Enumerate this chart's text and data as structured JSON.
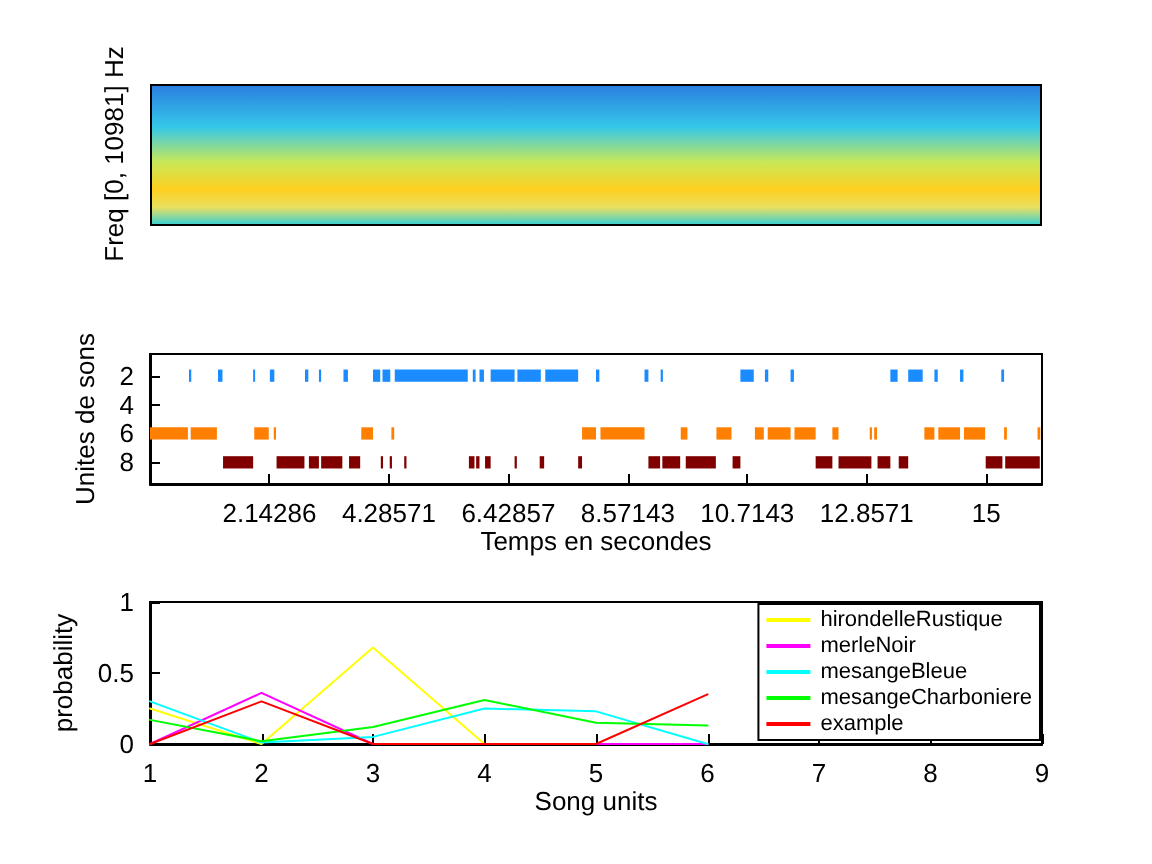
{
  "chart_data": [
    {
      "type": "other",
      "ylabel": "Freq [0, 10981] Hz"
    },
    {
      "type": "bar",
      "orientation": "horizontal",
      "xlabel": "Temps en secondes",
      "ylabel": "Unites de sons",
      "categories": [
        null,
        "2",
        null,
        "4",
        null,
        "6",
        null,
        "8",
        null
      ],
      "xlim": [
        0,
        16
      ],
      "xticks": [
        2.14286,
        4.28571,
        6.42857,
        8.57143,
        10.7143,
        12.8571,
        15
      ],
      "series": [
        {
          "values": [
            null,
            0.04,
            null,
            null,
            null,
            0.68,
            null,
            0.54,
            null
          ],
          "base": [
            null,
            0.7,
            null,
            null,
            null,
            0,
            null,
            1.31,
            null
          ],
          "colors": [
            null,
            "#1a8cff",
            null,
            null,
            null,
            "#ff7f00",
            null,
            "#800000",
            null
          ]
        },
        {
          "values": [
            null,
            0.08,
            null,
            null,
            null,
            0.47,
            null,
            0.5,
            null
          ],
          "base": [
            null,
            1.22,
            null,
            null,
            null,
            0.73,
            null,
            2.27,
            null
          ],
          "colors": [
            null,
            "#1a8cff",
            null,
            null,
            null,
            "#ff7f00",
            null,
            "#800000",
            null
          ]
        },
        {
          "values": [
            null,
            0.03,
            null,
            null,
            null,
            0.26,
            null,
            0.18,
            null
          ],
          "base": [
            null,
            1.85,
            null,
            null,
            null,
            1.87,
            null,
            2.85,
            null
          ],
          "colors": [
            null,
            "#1a8cff",
            null,
            null,
            null,
            "#ff7f00",
            null,
            "#800000",
            null
          ]
        },
        {
          "values": [
            null,
            0.08,
            null,
            null,
            null,
            0.04,
            null,
            0.38,
            null
          ],
          "base": [
            null,
            2.15,
            null,
            null,
            null,
            2.22,
            null,
            3.07,
            null
          ],
          "colors": [
            null,
            "#1a8cff",
            null,
            null,
            null,
            "#ff7f00",
            null,
            "#800000",
            null
          ]
        },
        {
          "values": [
            null,
            0.06,
            null,
            null,
            null,
            0.21,
            null,
            0.2,
            null
          ],
          "base": [
            null,
            2.78,
            null,
            null,
            null,
            3.79,
            null,
            3.57,
            null
          ],
          "colors": [
            null,
            "#1a8cff",
            null,
            null,
            null,
            "#ff7f00",
            null,
            "#800000",
            null
          ]
        },
        {
          "values": [
            null,
            0.04,
            null,
            null,
            null,
            0.05,
            null,
            0.04,
            null
          ],
          "base": [
            null,
            3.03,
            null,
            null,
            null,
            4.33,
            null,
            4.14,
            null
          ],
          "colors": [
            null,
            "#1a8cff",
            null,
            null,
            null,
            "#ff7f00",
            null,
            "#800000",
            null
          ]
        },
        {
          "values": [
            null,
            0.08,
            null,
            null,
            null,
            0.25,
            null,
            0.04,
            null
          ],
          "base": [
            null,
            3.47,
            null,
            null,
            null,
            7.75,
            null,
            4.3,
            null
          ],
          "colors": [
            null,
            "#1a8cff",
            null,
            null,
            null,
            "#ff7f00",
            null,
            "#800000",
            null
          ]
        },
        {
          "values": [
            null,
            0.13,
            null,
            null,
            null,
            0.79,
            null,
            0.04,
            null
          ],
          "base": [
            null,
            4.0,
            null,
            null,
            null,
            8.08,
            null,
            4.56,
            null
          ],
          "colors": [
            null,
            "#1a8cff",
            null,
            null,
            null,
            "#ff7f00",
            null,
            "#800000",
            null
          ]
        },
        {
          "values": [
            null,
            0.14,
            null,
            null,
            null,
            0.12,
            null,
            0.1,
            null
          ],
          "base": [
            null,
            4.17,
            null,
            null,
            null,
            9.52,
            null,
            5.72,
            null
          ],
          "colors": [
            null,
            "#1a8cff",
            null,
            null,
            null,
            "#ff7f00",
            null,
            "#800000",
            null
          ]
        },
        {
          "values": [
            null,
            1.31,
            null,
            null,
            null,
            0.27,
            null,
            0.06,
            null
          ],
          "base": [
            null,
            4.39,
            null,
            null,
            null,
            10.16,
            null,
            5.85,
            null
          ],
          "colors": [
            null,
            "#1a8cff",
            null,
            null,
            null,
            "#ff7f00",
            null,
            "#800000",
            null
          ]
        },
        {
          "values": [
            null,
            0.05,
            null,
            null,
            null,
            0.16,
            null,
            0.1,
            null
          ],
          "base": [
            null,
            5.79,
            null,
            null,
            null,
            10.85,
            null,
            6.01,
            null
          ],
          "colors": [
            null,
            "#1a8cff",
            null,
            null,
            null,
            "#ff7f00",
            null,
            "#800000",
            null
          ]
        },
        {
          "values": [
            null,
            0.08,
            null,
            null,
            null,
            0.41,
            null,
            0.04,
            null
          ],
          "base": [
            null,
            5.91,
            null,
            null,
            null,
            11.08,
            null,
            6.54,
            null
          ],
          "colors": [
            null,
            "#1a8cff",
            null,
            null,
            null,
            "#ff7f00",
            null,
            "#800000",
            null
          ]
        },
        {
          "values": [
            null,
            0.43,
            null,
            null,
            null,
            0.38,
            null,
            0.08,
            null
          ],
          "base": [
            null,
            6.11,
            null,
            null,
            null,
            11.56,
            null,
            6.99,
            null
          ],
          "colors": [
            null,
            "#1a8cff",
            null,
            null,
            null,
            "#ff7f00",
            null,
            "#800000",
            null
          ]
        },
        {
          "values": [
            null,
            0.42,
            null,
            null,
            null,
            0.11,
            null,
            0.07,
            null
          ],
          "base": [
            null,
            6.59,
            null,
            null,
            null,
            12.24,
            null,
            7.68,
            null
          ],
          "colors": [
            null,
            "#1a8cff",
            null,
            null,
            null,
            "#ff7f00",
            null,
            "#800000",
            null
          ]
        },
        {
          "values": [
            null,
            0.59,
            null,
            null,
            null,
            0.04,
            null,
            0.21,
            null
          ],
          "base": [
            null,
            7.09,
            null,
            null,
            null,
            12.91,
            null,
            8.94,
            null
          ],
          "colors": [
            null,
            "#1a8cff",
            null,
            null,
            null,
            "#ff7f00",
            null,
            "#800000",
            null
          ]
        },
        {
          "values": [
            null,
            0.06,
            null,
            null,
            null,
            0.05,
            null,
            0.32,
            null
          ],
          "base": [
            null,
            8.0,
            null,
            null,
            null,
            12.99,
            null,
            9.19,
            null
          ],
          "colors": [
            null,
            "#1a8cff",
            null,
            null,
            null,
            "#ff7f00",
            null,
            "#800000",
            null
          ]
        },
        {
          "values": [
            null,
            0.07,
            null,
            null,
            null,
            0.18,
            null,
            0.54,
            null
          ],
          "base": [
            null,
            8.87,
            null,
            null,
            null,
            13.89,
            null,
            9.61,
            null
          ],
          "colors": [
            null,
            "#1a8cff",
            null,
            null,
            null,
            "#ff7f00",
            null,
            "#800000",
            null
          ]
        },
        {
          "values": [
            null,
            0.04,
            null,
            null,
            null,
            0.39,
            null,
            0.14,
            null
          ],
          "base": [
            null,
            9.16,
            null,
            null,
            null,
            14.14,
            null,
            10.45,
            null
          ],
          "colors": [
            null,
            "#1a8cff",
            null,
            null,
            null,
            "#ff7f00",
            null,
            "#800000",
            null
          ]
        },
        {
          "values": [
            null,
            0.24,
            null,
            null,
            null,
            0.38,
            null,
            0.3,
            null
          ],
          "base": [
            null,
            10.59,
            null,
            null,
            null,
            14.6,
            null,
            11.94,
            null
          ],
          "colors": [
            null,
            "#1a8cff",
            null,
            null,
            null,
            "#ff7f00",
            null,
            "#800000",
            null
          ]
        },
        {
          "values": [
            null,
            0.06,
            null,
            null,
            null,
            0.05,
            null,
            0.59,
            null
          ],
          "base": [
            null,
            11.03,
            null,
            null,
            null,
            15.32,
            null,
            12.35,
            null
          ],
          "colors": [
            null,
            "#1a8cff",
            null,
            null,
            null,
            "#ff7f00",
            null,
            "#800000",
            null
          ]
        },
        {
          "values": [
            null,
            0.06,
            null,
            null,
            null,
            0.05,
            null,
            0.23,
            null
          ],
          "base": [
            null,
            11.49,
            null,
            null,
            null,
            15.92,
            null,
            13.05,
            null
          ],
          "colors": [
            null,
            "#1a8cff",
            null,
            null,
            null,
            "#ff7f00",
            null,
            "#800000",
            null
          ]
        },
        {
          "values": [
            null,
            0.13,
            null,
            null,
            null,
            null,
            null,
            0.17,
            null
          ],
          "base": [
            null,
            13.28,
            null,
            null,
            null,
            null,
            null,
            13.43,
            null
          ],
          "colors": [
            null,
            "#1a8cff",
            null,
            null,
            null,
            null,
            null,
            "#800000",
            null
          ]
        },
        {
          "values": [
            null,
            0.26,
            null,
            null,
            null,
            null,
            null,
            0.3,
            null
          ],
          "base": [
            null,
            13.6,
            null,
            null,
            null,
            null,
            null,
            14.99,
            null
          ],
          "colors": [
            null,
            "#1a8cff",
            null,
            null,
            null,
            null,
            null,
            "#800000",
            null
          ]
        },
        {
          "values": [
            null,
            0.06,
            null,
            null,
            null,
            null,
            null,
            0.62,
            null
          ],
          "base": [
            null,
            14.07,
            null,
            null,
            null,
            null,
            null,
            15.34,
            null
          ],
          "colors": [
            null,
            "#1a8cff",
            null,
            null,
            null,
            null,
            null,
            "#800000",
            null
          ]
        },
        {
          "values": [
            null,
            0.06,
            null,
            null,
            null,
            null,
            null,
            null,
            null
          ],
          "base": [
            null,
            14.53,
            null,
            null,
            null,
            null,
            null,
            null,
            null
          ],
          "colors": [
            null,
            "#1a8cff",
            null,
            null,
            null,
            null,
            null,
            null,
            null
          ]
        },
        {
          "values": [
            null,
            0.05,
            null,
            null,
            null,
            null,
            null,
            null,
            null
          ],
          "base": [
            null,
            15.27,
            null,
            null,
            null,
            null,
            null,
            null,
            null
          ],
          "colors": [
            null,
            "#1a8cff",
            null,
            null,
            null,
            null,
            null,
            null,
            null
          ]
        }
      ]
    },
    {
      "type": "line",
      "xlabel": "Song units",
      "ylabel": "probability",
      "x": [
        1,
        2,
        3,
        4,
        5,
        6
      ],
      "xlim": [
        1,
        9
      ],
      "xticks": [
        1,
        2,
        3,
        4,
        5,
        6,
        7,
        8,
        9
      ],
      "ylim": [
        0,
        1
      ],
      "yticks": [
        0,
        0.5,
        1
      ],
      "legend": "top right",
      "marker": "none",
      "series": [
        {
          "name": "hirondelleRustique",
          "color": "#ffff00",
          "values": [
            0.25,
            0,
            0.68,
            0,
            0,
            0
          ]
        },
        {
          "name": "merleNoir",
          "color": "#ff00ff",
          "values": [
            0,
            0.36,
            0,
            0,
            0,
            0
          ]
        },
        {
          "name": "mesangeBleue",
          "color": "#00ffff",
          "values": [
            0.3,
            0.01,
            0.05,
            0.25,
            0.23,
            0
          ]
        },
        {
          "name": "mesangeCharboniere",
          "color": "#00ff00",
          "values": [
            0.17,
            0.02,
            0.12,
            0.31,
            0.15,
            0.13
          ]
        },
        {
          "name": "example",
          "color": "#ff0000",
          "values": [
            0,
            0.3,
            0,
            0,
            0,
            0.35
          ]
        }
      ]
    }
  ]
}
